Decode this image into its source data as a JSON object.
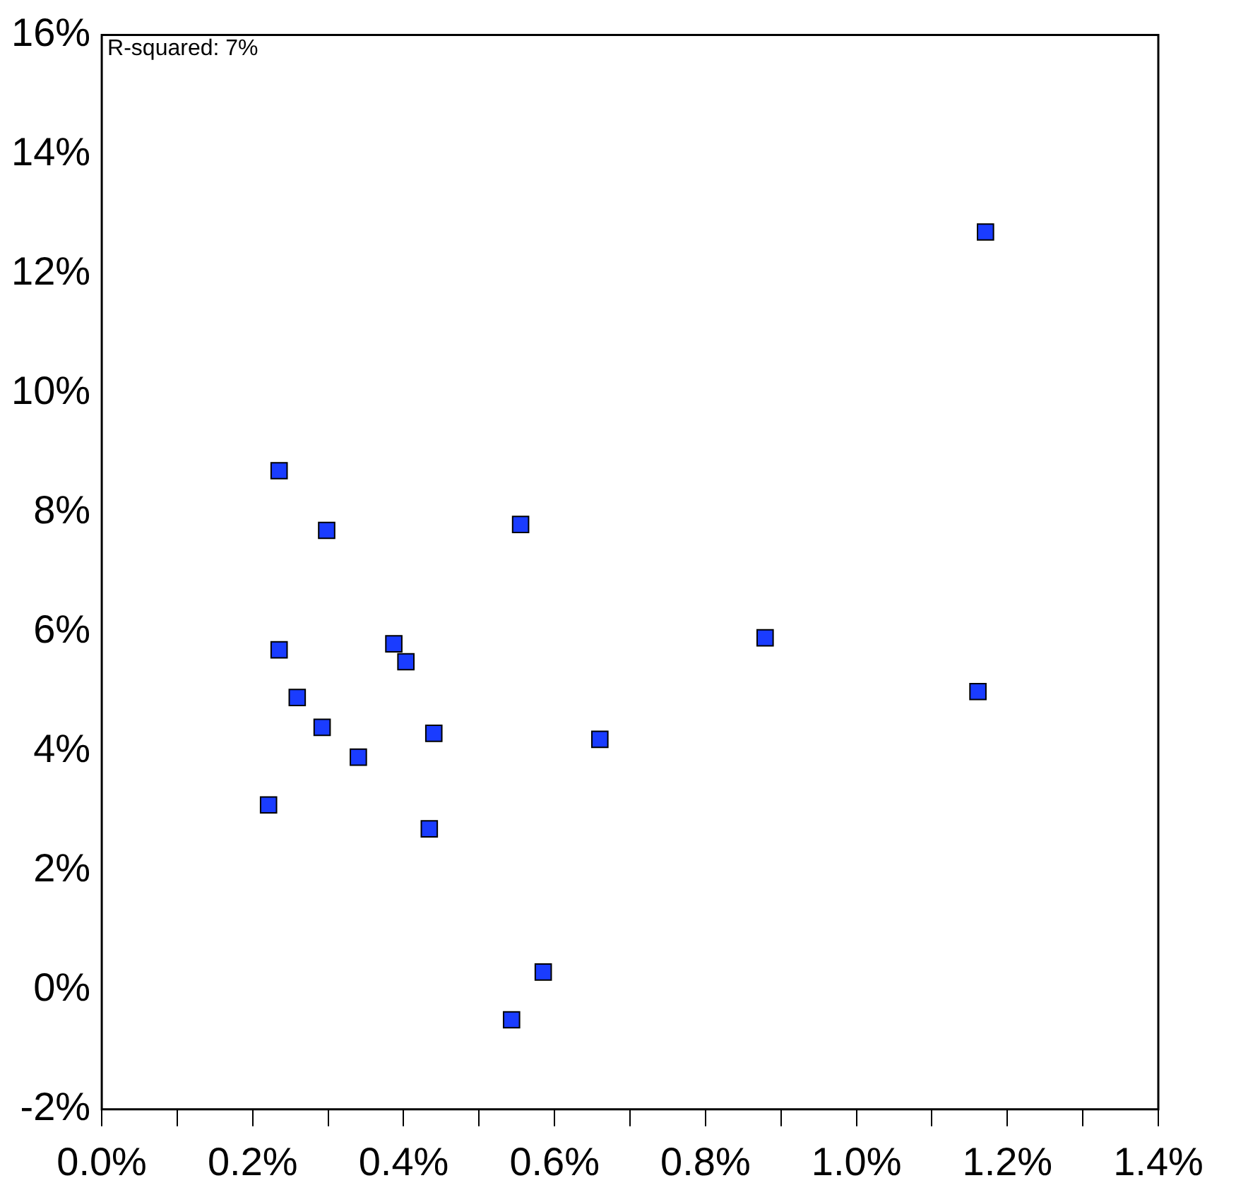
{
  "chart_data": {
    "type": "scatter",
    "annotations": [
      "R-squared: 7%"
    ],
    "marker": "square",
    "grid": false,
    "legend": false,
    "xlim": [
      0,
      1.4
    ],
    "ylim": [
      -2,
      16
    ],
    "xticks": [
      {
        "value": 0,
        "label": "0.0%"
      },
      {
        "value": 0.1,
        "label": null
      },
      {
        "value": 0.2,
        "label": "0.2%"
      },
      {
        "value": 0.3,
        "label": null
      },
      {
        "value": 0.4,
        "label": "0.4%"
      },
      {
        "value": 0.5,
        "label": null
      },
      {
        "value": 0.6,
        "label": "0.6%"
      },
      {
        "value": 0.7,
        "label": null
      },
      {
        "value": 0.8,
        "label": "0.8%"
      },
      {
        "value": 0.9,
        "label": null
      },
      {
        "value": 1.0,
        "label": "1.0%"
      },
      {
        "value": 1.1,
        "label": null
      },
      {
        "value": 1.2,
        "label": "1.2%"
      },
      {
        "value": 1.3,
        "label": null
      },
      {
        "value": 1.4,
        "label": "1.4%"
      }
    ],
    "yticks": [
      {
        "value": -2,
        "label": "-2%"
      },
      {
        "value": 0,
        "label": "0%"
      },
      {
        "value": 2,
        "label": "2%"
      },
      {
        "value": 4,
        "label": "4%"
      },
      {
        "value": 6,
        "label": "6%"
      },
      {
        "value": 8,
        "label": "8%"
      },
      {
        "value": 10,
        "label": "10%"
      },
      {
        "value": 12,
        "label": "12%"
      },
      {
        "value": 14,
        "label": "14%"
      },
      {
        "value": 16,
        "label": "16%"
      }
    ],
    "series": [
      {
        "color": "#1a3cff",
        "x": [
          0.235,
          0.298,
          0.555,
          1.171,
          0.235,
          0.387,
          0.403,
          0.879,
          1.161,
          0.259,
          0.292,
          0.34,
          0.44,
          0.66,
          0.221,
          0.434,
          0.585,
          0.543
        ],
        "values": [
          8.7,
          7.7,
          7.8,
          12.7,
          5.7,
          5.8,
          5.5,
          5.9,
          5.0,
          4.9,
          4.4,
          3.9,
          4.3,
          4.2,
          3.1,
          2.7,
          0.3,
          -0.5
        ]
      }
    ]
  }
}
